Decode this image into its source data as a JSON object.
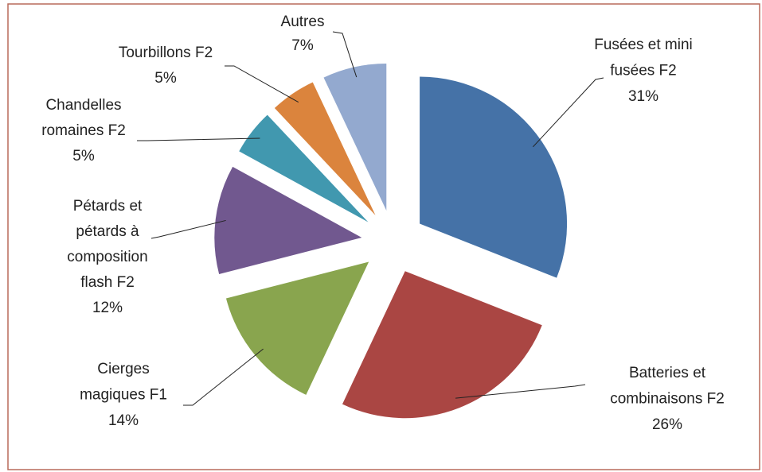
{
  "chart_data": {
    "type": "pie",
    "categories": [
      "Fusées et mini\nfusées F2",
      "Batteries et\ncombinaisons F2",
      "Cierges\nmagiques F1",
      "Pétards et\npétards à\ncomposition\nflash F2",
      "Chandelles\nromaines F2",
      "Tourbillons F2",
      "Autres"
    ],
    "values": [
      31,
      26,
      14,
      12,
      5,
      5,
      7
    ],
    "value_labels": [
      "31%",
      "26%",
      "14%",
      "12%",
      "5%",
      "5%",
      "7%"
    ],
    "colors": [
      "#4572a7",
      "#aa4643",
      "#89a54e",
      "#71588f",
      "#4198af",
      "#db843d",
      "#93a9cf"
    ],
    "exploded": true
  }
}
